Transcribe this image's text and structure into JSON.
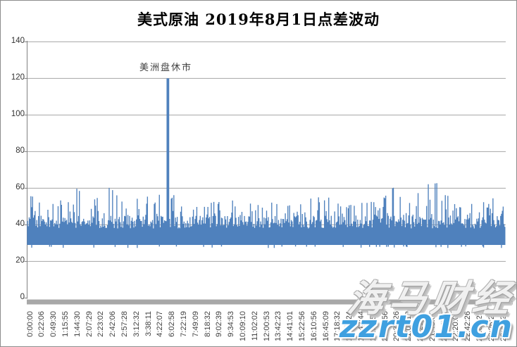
{
  "title": "美式原油 2019年8月1日点差波动",
  "annotation": "美洲盘休市",
  "watermark": {
    "line1": "海马财经",
    "line2": "zzrt01.cn",
    "line2_color": "#3fa0e0"
  },
  "chart_data": {
    "type": "bar",
    "title": "美式原油 2019年8月1日点差波动",
    "xlabel": "",
    "ylabel": "",
    "ylim": [
      0,
      140
    ],
    "y_ticks": [
      0,
      20,
      40,
      60,
      80,
      100,
      120,
      140
    ],
    "grid": "horizontal",
    "legend": "none",
    "bar_color": "#4F81BD",
    "axis_color": "#808080",
    "gridline_color": "#a6a6a6",
    "axis_band_color": "#a8a8a8",
    "baseline_value": 29,
    "typical_value_range": [
      29,
      55
    ],
    "max_peak_except_spike": 63,
    "spike": {
      "near_time": "4:22:07",
      "value": 120,
      "t": 0.2938,
      "label": "美洲盘休市"
    },
    "x_tick_labels": [
      "0:00:00",
      "0:22:06",
      "0:49:30",
      "1:15:55",
      "1:44:30",
      "2:07:29",
      "2:23:02",
      "2:42:06",
      "2:57:28",
      "3:12:32",
      "3:38:11",
      "4:22:07",
      "6:02:58",
      "7:22:19",
      "7:49:09",
      "8:18:32",
      "9:02:39",
      "9:34:53",
      "10:09:10",
      "11:02:02",
      "12:00:53",
      "13:42:23",
      "14:41:01",
      "15:22:56",
      "16:10:56",
      "16:45:09",
      "17:18:32",
      "18:06:24",
      "18:43:44",
      "19:25:56",
      "20:05:56",
      "20:33:26",
      "21:05:12",
      "21:21:38",
      "21:43:06",
      "22:00:37",
      "22:20:03",
      "22:42:26",
      "23:04:29",
      "23:26:23",
      "23:40:24"
    ],
    "envelope_peaks": [
      [
        0.0,
        56
      ],
      [
        0.02,
        55
      ],
      [
        0.045,
        50
      ],
      [
        0.075,
        55
      ],
      [
        0.105,
        60
      ],
      [
        0.13,
        50
      ],
      [
        0.155,
        61
      ],
      [
        0.175,
        60
      ],
      [
        0.2,
        52
      ],
      [
        0.24,
        55
      ],
      [
        0.275,
        57
      ],
      [
        0.3,
        58
      ],
      [
        0.33,
        50
      ],
      [
        0.36,
        52
      ],
      [
        0.4,
        54
      ],
      [
        0.44,
        53
      ],
      [
        0.47,
        52
      ],
      [
        0.5,
        53
      ],
      [
        0.54,
        50
      ],
      [
        0.57,
        52
      ],
      [
        0.6,
        55
      ],
      [
        0.63,
        55
      ],
      [
        0.66,
        50
      ],
      [
        0.7,
        52
      ],
      [
        0.74,
        53
      ],
      [
        0.765,
        60
      ],
      [
        0.785,
        63
      ],
      [
        0.81,
        55
      ],
      [
        0.835,
        62
      ],
      [
        0.865,
        63
      ],
      [
        0.9,
        50
      ],
      [
        0.93,
        52
      ],
      [
        0.96,
        53
      ],
      [
        0.98,
        55
      ],
      [
        1.0,
        52
      ]
    ],
    "gen": {
      "seed": 42,
      "strips": 562,
      "base_top_min": 38,
      "base_top_max": 45,
      "tower_prob": 0.28,
      "bottom": 29,
      "dip_prob": 0.07,
      "dip_bottom": 27.3
    }
  }
}
